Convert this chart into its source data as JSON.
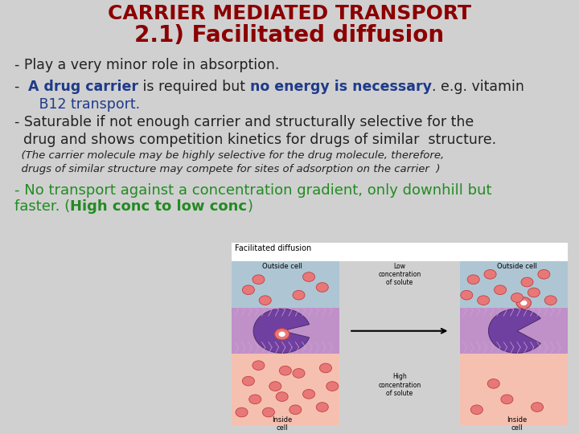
{
  "background_color": "#d0d0d0",
  "title_line1": "CARRIER MEDIATED TRANSPORT",
  "title_line2": "2.1) Facilitated diffusion",
  "title_color": "#8B0000",
  "title_fontsize": 18,
  "subtitle_fontsize": 20,
  "bullet_fontsize": 12.5,
  "small_fontsize": 9.5,
  "green_fontsize": 13,
  "bullet1": "- Play a very minor role in absorption.",
  "bullet3_line1": "- Saturable if not enough carrier and structurally selective for the",
  "bullet3_line2": "  drug and shows competition kinetics for drugs of similar  structure.",
  "bullet3_small1": "  (The carrier molecule may be highly selective for the drug molecule, therefore,",
  "bullet3_small2": "  drugs of similar structure may compete for sites of adsorption on the carrier  )",
  "bullet4_green1": "- No transport against a concentration gradient, only downhill but",
  "text_color": "#222222",
  "blue_color": "#1e3a8a",
  "green_color": "#228B22",
  "figsize": [
    7.2,
    5.4
  ],
  "dpi": 100
}
